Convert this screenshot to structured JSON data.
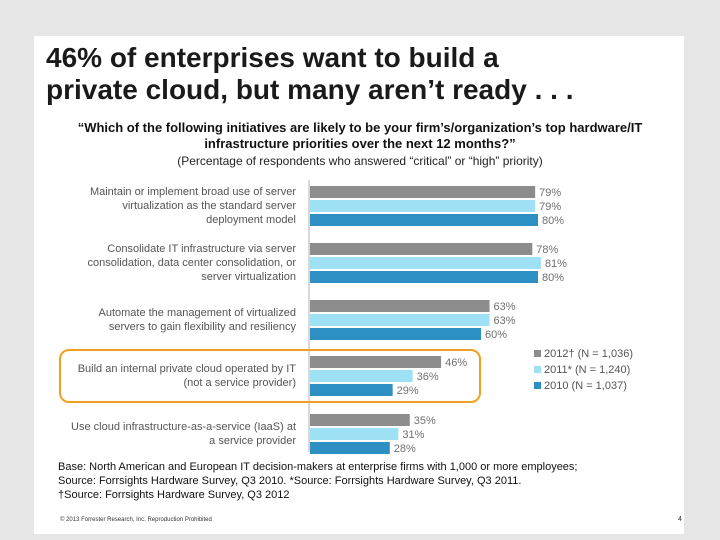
{
  "slide": {
    "title_lines": [
      "46% of enterprises want to build a",
      "private cloud, but many aren’t ready . . ."
    ],
    "question_lines": [
      "“Which of the following initiatives are likely to be your firm’s/organization’s top hardware/IT",
      "infrastructure priorities over the next 12 months?”"
    ],
    "subquestion": "(Percentage of respondents who answered “critical” or “high” priority)",
    "notes": [
      "Base: North American and European IT decision-makers at enterprise firms with 1,000 or more employees;",
      "Source: Forrsights Hardware Survey, Q3 2010. *Source: Forrsights Hardware Survey, Q3 2011.",
      "†Source: Forrsights Hardware Survey, Q3 2012"
    ],
    "footer_left": "© 2013 Forrester Research, Inc. Reproduction Prohibited",
    "page_number": "4"
  },
  "colors": {
    "2012": "#8c8c8c",
    "2011": "#9ee0f4",
    "2010": "#2e8fc2",
    "highlight": "#f0a020",
    "label_text": "#555555",
    "value_text": "#707070"
  },
  "chart_data": {
    "type": "bar",
    "orientation": "horizontal",
    "categories": [
      [
        "Maintain or implement broad use of server",
        "virtualization as the standard server",
        "deployment model"
      ],
      [
        "Consolidate IT infrastructure via server",
        "consolidation, data center consolidation, or",
        "server virtualization"
      ],
      [
        "Automate the management of virtualized",
        "servers to gain flexibility and resiliency"
      ],
      [
        "Build an internal private cloud operated by IT",
        "(not a service provider)"
      ],
      [
        "Use cloud infrastructure-as-a-service (IaaS) at",
        "a service provider"
      ]
    ],
    "series": [
      {
        "name": "2012† (N = 1,036)",
        "key": "2012",
        "values": [
          79,
          78,
          63,
          46,
          35
        ]
      },
      {
        "name": "2011* (N = 1,240)",
        "key": "2011",
        "values": [
          79,
          81,
          63,
          36,
          31
        ]
      },
      {
        "name": "2010 (N = 1,037)",
        "key": "2010",
        "values": [
          80,
          80,
          60,
          29,
          28
        ]
      }
    ],
    "value_suffix": "%",
    "highlighted_category_index": 3,
    "legend_position": "right",
    "xlim": [
      0,
      100
    ],
    "grid": false
  }
}
